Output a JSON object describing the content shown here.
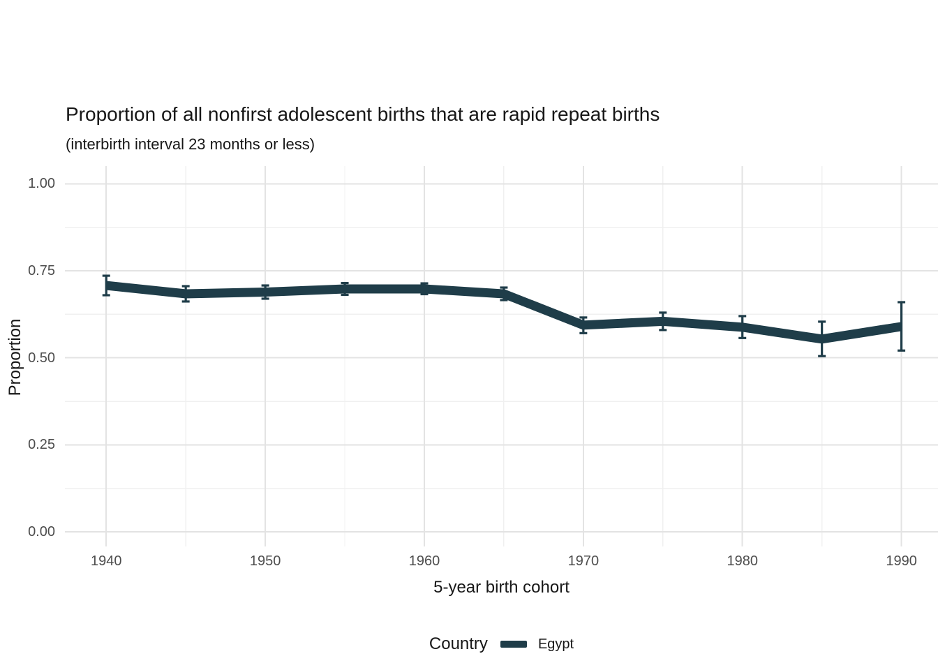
{
  "chart_data": {
    "type": "line",
    "title": "Proportion of all nonfirst adolescent births that are rapid repeat births",
    "subtitle": "(interbirth interval 23 months or less)",
    "xlabel": "5-year birth cohort",
    "ylabel": "Proportion",
    "x": [
      1940,
      1945,
      1950,
      1955,
      1960,
      1965,
      1970,
      1975,
      1980,
      1985,
      1990
    ],
    "series": [
      {
        "name": "Egypt",
        "color": "#1f3d49",
        "values": [
          0.708,
          0.684,
          0.689,
          0.698,
          0.698,
          0.684,
          0.594,
          0.605,
          0.588,
          0.554,
          0.59
        ],
        "lower": [
          0.68,
          0.662,
          0.67,
          0.681,
          0.683,
          0.666,
          0.571,
          0.58,
          0.557,
          0.505,
          0.521
        ],
        "upper": [
          0.736,
          0.706,
          0.708,
          0.715,
          0.714,
          0.702,
          0.616,
          0.63,
          0.62,
          0.604,
          0.66
        ]
      }
    ],
    "error_bars": true,
    "x_ticks": [
      1940,
      1950,
      1960,
      1970,
      1980,
      1990
    ],
    "x_tick_labels": [
      "1940",
      "1950",
      "1960",
      "1970",
      "1980",
      "1990"
    ],
    "x_minor_ticks": [
      1945,
      1955,
      1965,
      1975,
      1985
    ],
    "y_ticks": [
      0,
      0.25,
      0.5,
      0.75,
      1
    ],
    "y_tick_labels": [
      "0.00",
      "0.25",
      "0.50",
      "0.75",
      "1.00"
    ],
    "y_minor_ticks": [
      0.125,
      0.375,
      0.625,
      0.875
    ],
    "xlim": [
      1937.4,
      1992.3
    ],
    "ylim": [
      -0.042,
      1.051
    ],
    "grid": "major and minor gridlines, light gray on white, no axis lines, no tick marks",
    "legend": {
      "title": "Country",
      "position": "bottom-center",
      "entries": [
        {
          "label": "Egypt",
          "color": "#1f3d49"
        }
      ]
    }
  },
  "styles": {
    "background": "#ffffff",
    "line_color": "#1f3d49",
    "major_grid_color": "#e3e3e3",
    "minor_grid_color": "#f0f0f0",
    "tick_label_color": "#4d4d4d",
    "text_color": "#171717"
  }
}
